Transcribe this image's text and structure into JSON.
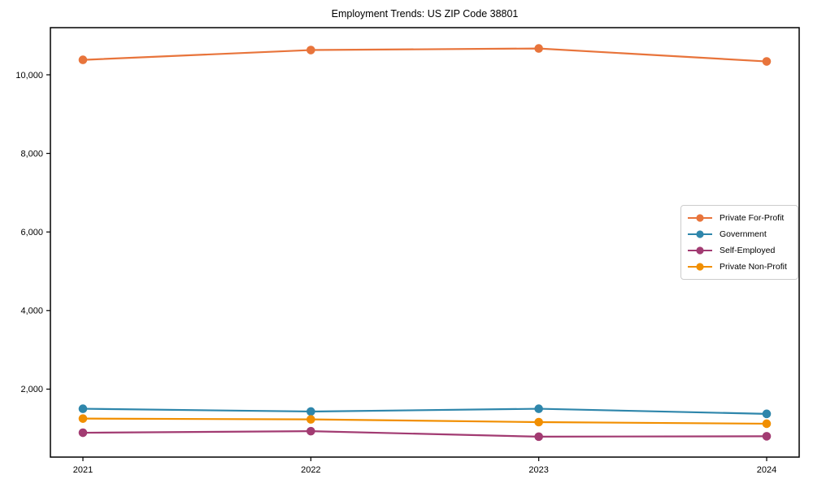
{
  "chart_data": {
    "type": "line",
    "title": "Employment Trends: US ZIP Code 38801",
    "categories": [
      "2021",
      "2022",
      "2023",
      "2024"
    ],
    "series": [
      {
        "name": "Private For-Profit",
        "color": "#E8743B",
        "values": [
          10380,
          10630,
          10670,
          10340
        ]
      },
      {
        "name": "Government",
        "color": "#2E86AB",
        "values": [
          1500,
          1430,
          1500,
          1370
        ]
      },
      {
        "name": "Self-Employed",
        "color": "#A23B72",
        "values": [
          890,
          930,
          790,
          800
        ]
      },
      {
        "name": "Private Non-Profit",
        "color": "#F18F01",
        "values": [
          1250,
          1230,
          1160,
          1120
        ]
      }
    ],
    "xlabel": "",
    "ylabel": "",
    "ylim": [
      270,
      11200
    ],
    "yticks": [
      2000,
      4000,
      6000,
      8000,
      10000
    ],
    "ytick_labels": [
      "2,000",
      "4,000",
      "6,000",
      "8,000",
      "10,000"
    ],
    "grid": false,
    "legend_position": "center-right",
    "marker": "circle",
    "axis_color": "#000000",
    "background": "#ffffff"
  }
}
